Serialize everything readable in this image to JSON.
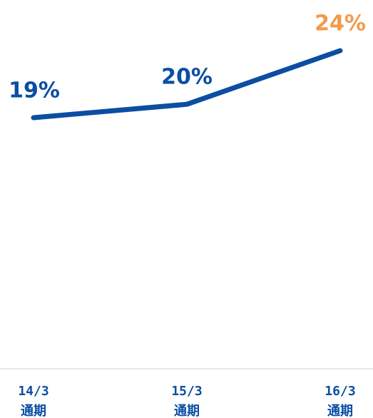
{
  "chart_data": {
    "type": "line",
    "categories": [
      [
        "14/3",
        "通期"
      ],
      [
        "15/3",
        "通期"
      ],
      [
        "16/3",
        "通期"
      ]
    ],
    "values": [
      19,
      20,
      24
    ],
    "value_labels": [
      "19%",
      "20%",
      "24%"
    ],
    "color": "#0b4ea2",
    "value_label_colors": [
      "#0b4ea2",
      "#0b4ea2",
      "#f39a4a"
    ]
  }
}
